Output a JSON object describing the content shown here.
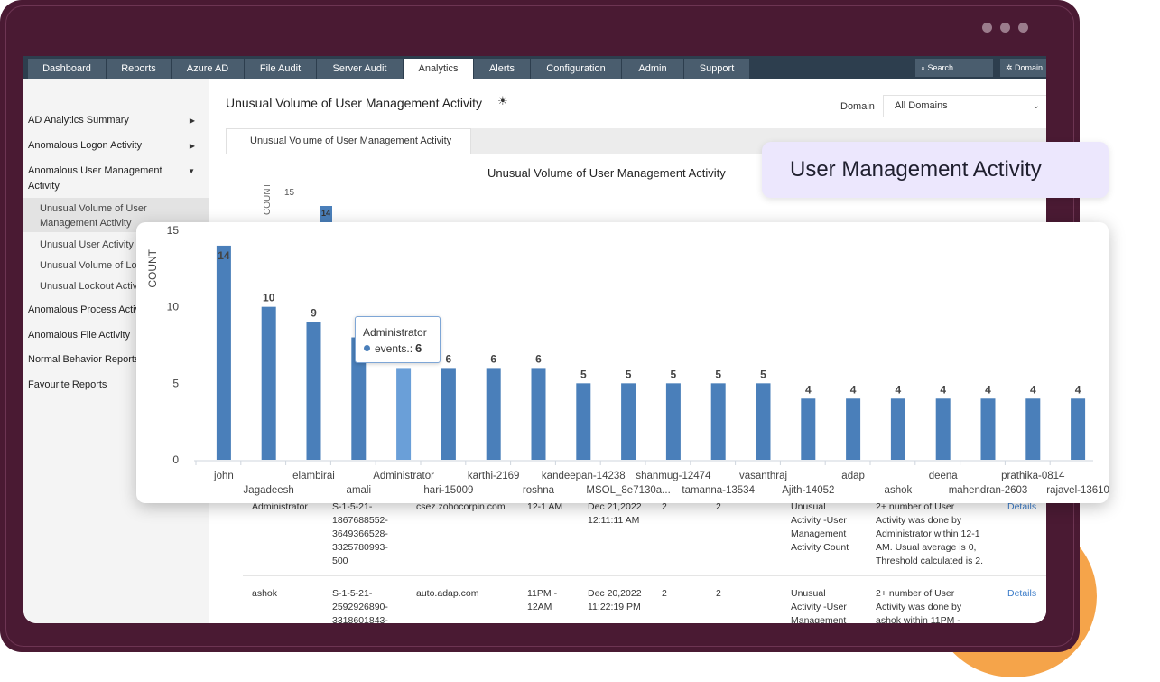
{
  "nav": {
    "tabs": [
      "Dashboard",
      "Reports",
      "Azure AD",
      "File Audit",
      "Server Audit",
      "Analytics",
      "Alerts",
      "Configuration",
      "Admin",
      "Support"
    ],
    "active_tab": "Analytics",
    "search_placeholder": "Search...",
    "domain_button": "Domain"
  },
  "sidebar": {
    "items": [
      {
        "label": "AD Analytics Summary",
        "caret": "▶"
      },
      {
        "label": "Anomalous Logon Activity",
        "caret": "▶"
      },
      {
        "label": "Anomalous User Management Activity",
        "caret": "▼"
      },
      {
        "label": "Anomalous Process Activity",
        "caret": ""
      },
      {
        "label": "Anomalous File Activity",
        "caret": ""
      },
      {
        "label": "Normal Behavior Reports",
        "caret": ""
      },
      {
        "label": "Favourite Reports",
        "caret": ""
      }
    ],
    "subitems": [
      "Unusual Volume of User Management Activity",
      "Unusual User Activity Time",
      "Unusual Volume of Lockout Activity",
      "Unusual Lockout Activity Time"
    ]
  },
  "page": {
    "title": "Unusual Volume of User Management Activity",
    "bulb_icon": "☀",
    "domain_label": "Domain",
    "domain_value": "All Domains",
    "domain_chevron": "⌄",
    "subtab": "Unusual Volume of User Management Activity",
    "bg_chart_title": "Unusual Volume of User Management Activity",
    "bg_count_label": "COUNT",
    "bg_tick": "15",
    "bg_bar_label": "14"
  },
  "table": {
    "rows": [
      {
        "user": "Administrator",
        "sid": "S-1-5-21-\n1867688552-\n3649366528-\n3325780993-\n500",
        "domain": "csez.zohocorpin.com",
        "time_range": "12-1 AM",
        "time": "Dec 21,2022\n12:11:11 AM",
        "count_a": "2",
        "count_b": "2",
        "alert": "Unusual\nActivity -User\nManagement\nActivity Count",
        "message": "2+ number of User\nActivity was done by\nAdministrator within 12-1\nAM. Usual average is 0,\nThreshold calculated is 2.",
        "link": "Details"
      },
      {
        "user": "ashok",
        "sid": "S-1-5-21-\n2592926890-\n3318601843-",
        "domain": "auto.adap.com",
        "time_range": "11PM -\n12AM",
        "time": "Dec 20,2022\n11:22:19 PM",
        "count_a": "2",
        "count_b": "2",
        "alert": "Unusual\nActivity -User\nManagement",
        "message": "2+ number of User\nActivity was done by\nashok within 11PM -",
        "link": "Details"
      }
    ]
  },
  "callout": {
    "text": "User Management Activity"
  },
  "chart_data": {
    "type": "bar",
    "ylabel": "COUNT",
    "ylim": [
      0,
      15
    ],
    "yticks": [
      "0",
      "5",
      "10",
      "15"
    ],
    "categories": [
      "john",
      "Jagadeesh",
      "elambirai",
      "amali",
      "Administrator",
      "hari-15009",
      "karthi-2169",
      "roshna",
      "kandeepan-14238",
      "MSOL_8e7130a...",
      "shanmug-12474",
      "tamanna-13534",
      "vasanthraj",
      "Ajith-14052",
      "adap",
      "ashok",
      "deena",
      "mahendran-2603",
      "prathika-0814",
      "rajavel-13610"
    ],
    "values": [
      14,
      10,
      9,
      8,
      6,
      6,
      6,
      6,
      5,
      5,
      5,
      5,
      5,
      4,
      4,
      4,
      4,
      4,
      4,
      4
    ],
    "highlighted_index": 4,
    "bar_color": "#4a7fba",
    "highlight_color": "#6a9fd8",
    "tooltip": {
      "name": "Administrator",
      "label": "events.:",
      "value": "6"
    }
  }
}
